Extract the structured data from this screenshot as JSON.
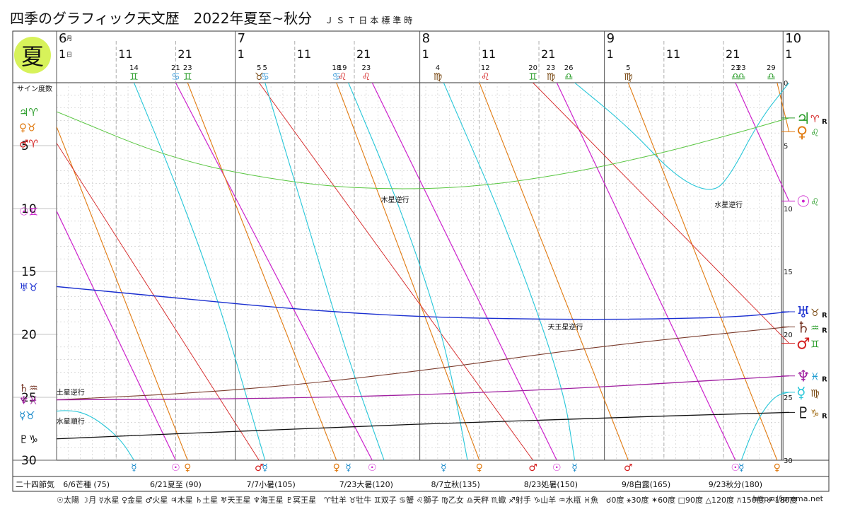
{
  "title": "四季のグラフィック天文歴　2022年夏至~秋分",
  "title_sub": "ＪＳＴ日本標準時",
  "season": "夏",
  "left_axis_label": "サイン度数",
  "solar_terms_label": "二十四節気",
  "url": "https://iprema.net",
  "months": [
    {
      "label": "6",
      "unit": "月",
      "day": "1",
      "dunit": "日",
      "d": 0
    },
    {
      "label": "7",
      "day": "1",
      "d": 30
    },
    {
      "label": "8",
      "day": "1",
      "d": 61
    },
    {
      "label": "9",
      "day": "1",
      "d": 92
    },
    {
      "label": "10",
      "day": "1",
      "d": 122
    }
  ],
  "day_ticks": [
    {
      "label": "11",
      "d": 10
    },
    {
      "label": "21",
      "d": 20
    },
    {
      "label": "11",
      "d": 40
    },
    {
      "label": "21",
      "d": 50
    },
    {
      "label": "11",
      "d": 71
    },
    {
      "label": "21",
      "d": 81
    },
    {
      "label": "11",
      "d": 102
    },
    {
      "label": "21",
      "d": 112
    }
  ],
  "y_ticks_left": [
    "5",
    "10",
    "15",
    "20",
    "25",
    "30"
  ],
  "y_ticks_right": [
    "0",
    "5",
    "10",
    "15",
    "20",
    "25",
    "30"
  ],
  "sign_ingress": [
    {
      "day": "14",
      "sym": "♊",
      "d": 13,
      "color": "#2a9d2a"
    },
    {
      "day": "21",
      "sym": "♋",
      "d": 20,
      "color": "#3a9ad8"
    },
    {
      "day": "23",
      "sym": "♊",
      "d": 22,
      "color": "#2a9d2a"
    },
    {
      "day": "5",
      "sym": "♉",
      "d": 34,
      "color": "#7a4a14"
    },
    {
      "day": "5",
      "sym": "♋",
      "d": 35,
      "color": "#3a9ad8"
    },
    {
      "day": "18",
      "sym": "♋",
      "d": 47,
      "color": "#3a9ad8"
    },
    {
      "day": "19",
      "sym": "♌",
      "d": 48,
      "color": "#d42020"
    },
    {
      "day": "23",
      "sym": "♌",
      "d": 52,
      "color": "#d42020"
    },
    {
      "day": "4",
      "sym": "♍",
      "d": 64,
      "color": "#7a4a14"
    },
    {
      "day": "12",
      "sym": "♌",
      "d": 72,
      "color": "#d42020"
    },
    {
      "day": "20",
      "sym": "♊",
      "d": 80,
      "color": "#2a9d2a"
    },
    {
      "day": "23",
      "sym": "♍",
      "d": 83,
      "color": "#7a4a14"
    },
    {
      "day": "26",
      "sym": "♎",
      "d": 86,
      "color": "#2a9d2a"
    },
    {
      "day": "5",
      "sym": "♍",
      "d": 96,
      "color": "#7a4a14"
    },
    {
      "day": "23",
      "sym": "♎",
      "d": 114,
      "color": "#2a9d2a"
    },
    {
      "day": "23",
      "sym": "♎",
      "d": 115,
      "color": "#2a9d2a"
    },
    {
      "day": "29",
      "sym": "♎",
      "d": 120,
      "color": "#2a9d2a"
    }
  ],
  "left_markers": [
    {
      "text": "♃♈",
      "deg": 2.3,
      "color": "#2a9d2a"
    },
    {
      "text": "♀♉",
      "deg": 3.5,
      "color": "#e07a10"
    },
    {
      "text": "♂♈",
      "deg": 4.8,
      "color": "#d42020"
    },
    {
      "text": "☉♊",
      "deg": 10.2,
      "color": "#cc22cc"
    },
    {
      "text": "♅♉",
      "deg": 16.2,
      "color": "#1a2fd0"
    },
    {
      "text": "♄♒",
      "deg": 24.2,
      "color": "#7a3b2c"
    },
    {
      "text": "♆♓",
      "deg": 25.2,
      "color": "#a020a0"
    },
    {
      "text": "☿♉",
      "deg": 26.4,
      "color": "#1a8aca"
    },
    {
      "text": "♇♑",
      "deg": 28.3,
      "color": "#111111"
    }
  ],
  "right_markers": [
    {
      "planet": "♃",
      "sign": "♈",
      "r": "R",
      "deg": 2.8,
      "pcolor": "#2a9d2a",
      "scolor": "#d42020"
    },
    {
      "planet": "♀",
      "sign": "♌",
      "r": "",
      "deg": 3.9,
      "pcolor": "#e07a10",
      "scolor": "#2a9d2a"
    },
    {
      "planet": "☉",
      "sign": "♌",
      "r": "",
      "deg": 9.4,
      "pcolor": "#cc22cc",
      "scolor": "#2a9d2a"
    },
    {
      "planet": "♅",
      "sign": "♉",
      "r": "R",
      "deg": 18.2,
      "pcolor": "#1a2fd0",
      "scolor": "#7a4a14"
    },
    {
      "planet": "♄",
      "sign": "♒",
      "r": "R",
      "deg": 19.4,
      "pcolor": "#7a3b2c",
      "scolor": "#2a9d2a"
    },
    {
      "planet": "♂",
      "sign": "♊",
      "r": "",
      "deg": 20.7,
      "pcolor": "#d42020",
      "scolor": "#2a9d2a"
    },
    {
      "planet": "♆",
      "sign": "♓",
      "r": "R",
      "deg": 23.3,
      "pcolor": "#a020a0",
      "scolor": "#1a9ad0"
    },
    {
      "planet": "☿",
      "sign": "♍",
      "r": "",
      "deg": 24.6,
      "pcolor": "#27c6d8",
      "scolor": "#7a4a14"
    },
    {
      "planet": "♇",
      "sign": "♑",
      "r": "R",
      "deg": 26.2,
      "pcolor": "#111111",
      "scolor": "#a06a10"
    }
  ],
  "notes": [
    {
      "text": "木星逆行",
      "d": 54,
      "deg": 9.5
    },
    {
      "text": "水星逆行",
      "d": 110,
      "deg": 9.9
    },
    {
      "text": "天王星逆行",
      "d": 82,
      "deg": 19.6
    },
    {
      "text": "土星逆行",
      "d": -0.5,
      "deg": 24.8
    },
    {
      "text": "水星順行",
      "d": -0.5,
      "deg": 27.1
    }
  ],
  "bottom_symbols": [
    {
      "sym": "☿",
      "d": 13,
      "color": "#1a8aca"
    },
    {
      "sym": "☉",
      "d": 20,
      "color": "#cc22cc"
    },
    {
      "sym": "♀",
      "d": 22,
      "color": "#e07a10"
    },
    {
      "sym": "♂",
      "d": 34,
      "color": "#d42020"
    },
    {
      "sym": "☿",
      "d": 35,
      "color": "#1a8aca"
    },
    {
      "sym": "♀",
      "d": 47,
      "color": "#e07a10"
    },
    {
      "sym": "☿",
      "d": 49,
      "color": "#1a8aca"
    },
    {
      "sym": "☉",
      "d": 53,
      "color": "#cc22cc"
    },
    {
      "sym": "☿",
      "d": 65,
      "color": "#1a8aca"
    },
    {
      "sym": "♀",
      "d": 71,
      "color": "#e07a10"
    },
    {
      "sym": "♂",
      "d": 80,
      "color": "#d42020"
    },
    {
      "sym": "☉",
      "d": 84,
      "color": "#cc22cc"
    },
    {
      "sym": "☿",
      "d": 87,
      "color": "#1a8aca"
    },
    {
      "sym": "♂",
      "d": 96,
      "color": "#d42020"
    },
    {
      "sym": "☉",
      "d": 114,
      "color": "#cc22cc"
    },
    {
      "sym": "☿",
      "d": 115,
      "color": "#1a8aca"
    },
    {
      "sym": "♀",
      "d": 121,
      "color": "#e07a10"
    }
  ],
  "solar_terms": [
    {
      "text": "6/6芒種 (75)",
      "d": 5
    },
    {
      "text": "6/21夏至 (90)",
      "d": 20
    },
    {
      "text": "7/7小暑(105)",
      "d": 36
    },
    {
      "text": "7/23大暑(120)",
      "d": 52
    },
    {
      "text": "8/7立秋(135)",
      "d": 67
    },
    {
      "text": "8/23処暑(150)",
      "d": 83
    },
    {
      "text": "9/8白露(165)",
      "d": 99
    },
    {
      "text": "9/23秋分(180)",
      "d": 114
    }
  ],
  "legend_text": "☉太陽 ☽月 ☿水星 ♀金星 ♂火星 ♃木星 ♄土星 ♅天王星 ♆海王星 ♇冥王星　♈牡羊 ♉牡牛 ♊双子 ♋蟹 ♌獅子 ♍乙女 ♎天秤 ♏蠍 ♐射手 ♑山羊 ♒水瓶 ♓魚　☌0度 ⚹30度 ✶60度 □90度 △120度 ⚻150度 ☍180度",
  "chart_data": {
    "type": "line",
    "xlabel": "",
    "ylabel": "サイン度数",
    "x_range_days_from_jun1": [
      0,
      123
    ],
    "ylim": [
      0,
      30
    ],
    "y_inverted": true,
    "grid": true,
    "series": [
      {
        "name": "☉",
        "color": "#cc22cc",
        "width": 1.2,
        "points": [
          [
            0,
            10.2
          ],
          [
            20,
            30
          ]
        ]
      },
      {
        "name": "☉",
        "color": "#cc22cc",
        "width": 1.2,
        "points": [
          [
            20,
            0
          ],
          [
            53,
            30
          ]
        ]
      },
      {
        "name": "☉",
        "color": "#cc22cc",
        "width": 1.2,
        "points": [
          [
            53,
            0
          ],
          [
            84,
            30
          ]
        ]
      },
      {
        "name": "☉",
        "color": "#cc22cc",
        "width": 1.2,
        "points": [
          [
            84,
            0
          ],
          [
            114,
            30
          ]
        ]
      },
      {
        "name": "☉",
        "color": "#cc22cc",
        "width": 1.2,
        "points": [
          [
            114,
            0
          ],
          [
            123,
            9.4
          ]
        ]
      },
      {
        "name": "♀",
        "color": "#e07a10",
        "width": 1.1,
        "points": [
          [
            0,
            3.5
          ],
          [
            22,
            30
          ]
        ]
      },
      {
        "name": "♀",
        "color": "#e07a10",
        "width": 1.1,
        "points": [
          [
            22,
            0
          ],
          [
            47,
            30
          ]
        ]
      },
      {
        "name": "♀",
        "color": "#e07a10",
        "width": 1.1,
        "points": [
          [
            47,
            0
          ],
          [
            71,
            30
          ]
        ]
      },
      {
        "name": "♀",
        "color": "#e07a10",
        "width": 1.1,
        "points": [
          [
            71,
            0
          ],
          [
            96,
            30
          ]
        ]
      },
      {
        "name": "♀",
        "color": "#e07a10",
        "width": 1.1,
        "points": [
          [
            96,
            0
          ],
          [
            121,
            30
          ]
        ]
      },
      {
        "name": "♀",
        "color": "#e07a10",
        "width": 1.1,
        "points": [
          [
            121,
            0
          ],
          [
            123,
            3.9
          ]
        ]
      },
      {
        "name": "♂",
        "color": "#d42020",
        "width": 0.9,
        "points": [
          [
            0,
            4.8
          ],
          [
            34,
            30
          ]
        ]
      },
      {
        "name": "♂",
        "color": "#d42020",
        "width": 0.9,
        "points": [
          [
            34,
            0
          ],
          [
            80,
            30
          ]
        ]
      },
      {
        "name": "♂",
        "color": "#d42020",
        "width": 0.9,
        "points": [
          [
            80,
            0
          ],
          [
            123,
            20.7
          ]
        ]
      },
      {
        "name": "☿",
        "color": "#27c6d8",
        "width": 1.1,
        "points": [
          [
            -2,
            26.2
          ],
          [
            2,
            26.0
          ],
          [
            5,
            26.3
          ],
          [
            8,
            27.2
          ],
          [
            11,
            28.5
          ],
          [
            13,
            30
          ]
        ]
      },
      {
        "name": "☿",
        "color": "#27c6d8",
        "width": 1.1,
        "points": [
          [
            13,
            0
          ],
          [
            20,
            8
          ],
          [
            27,
            17
          ],
          [
            35,
            30
          ]
        ]
      },
      {
        "name": "☿",
        "color": "#27c6d8",
        "width": 1.1,
        "points": [
          [
            35,
            0
          ],
          [
            42,
            11
          ],
          [
            49,
            22
          ],
          [
            55,
            30
          ]
        ]
      },
      {
        "name": "☿",
        "color": "#27c6d8",
        "width": 1.1,
        "points": [
          [
            49,
            0
          ],
          [
            57,
            9
          ],
          [
            65,
            20
          ],
          [
            69,
            30
          ]
        ]
      },
      {
        "name": "☿",
        "color": "#27c6d8",
        "width": 1.1,
        "points": [
          [
            65,
            0
          ],
          [
            76,
            12
          ],
          [
            85,
            24
          ],
          [
            87,
            30
          ]
        ]
      },
      {
        "name": "☿",
        "color": "#27c6d8",
        "width": 1.1,
        "points": [
          [
            87,
            0
          ],
          [
            96,
            3.5
          ],
          [
            104,
            7.5
          ],
          [
            110,
            8.8
          ],
          [
            113,
            7.5
          ],
          [
            118,
            3
          ],
          [
            123,
            0
          ]
        ]
      },
      {
        "name": "☿",
        "color": "#27c6d8",
        "width": 1.1,
        "points": [
          [
            115,
            30
          ],
          [
            117,
            27.5
          ],
          [
            119,
            25.8
          ],
          [
            121,
            24.8
          ],
          [
            123,
            24.6
          ]
        ]
      },
      {
        "name": "♃",
        "color": "#59c641",
        "width": 1.0,
        "points": [
          [
            0,
            2.3
          ],
          [
            20,
            6.2
          ],
          [
            40,
            8.0
          ],
          [
            55,
            8.5
          ],
          [
            70,
            8.3
          ],
          [
            85,
            7.3
          ],
          [
            100,
            5.8
          ],
          [
            115,
            3.9
          ],
          [
            123,
            2.8
          ]
        ]
      },
      {
        "name": "♅",
        "color": "#1a2fd0",
        "width": 1.4,
        "points": [
          [
            0,
            16.2
          ],
          [
            20,
            17.1
          ],
          [
            40,
            18.0
          ],
          [
            60,
            18.6
          ],
          [
            80,
            18.8
          ],
          [
            100,
            18.8
          ],
          [
            115,
            18.6
          ],
          [
            123,
            18.2
          ]
        ]
      },
      {
        "name": "♄",
        "color": "#7a3b2c",
        "width": 1.1,
        "points": [
          [
            0,
            25.2
          ],
          [
            30,
            24.5
          ],
          [
            60,
            23.0
          ],
          [
            90,
            21.0
          ],
          [
            123,
            19.4
          ]
        ]
      },
      {
        "name": "♆",
        "color": "#a020a0",
        "width": 1.3,
        "points": [
          [
            0,
            25.2
          ],
          [
            40,
            25.1
          ],
          [
            80,
            24.5
          ],
          [
            123,
            23.3
          ]
        ]
      },
      {
        "name": "♇",
        "color": "#111111",
        "width": 1.3,
        "points": [
          [
            0,
            28.3
          ],
          [
            40,
            27.5
          ],
          [
            80,
            26.8
          ],
          [
            123,
            26.2
          ]
        ]
      }
    ]
  }
}
